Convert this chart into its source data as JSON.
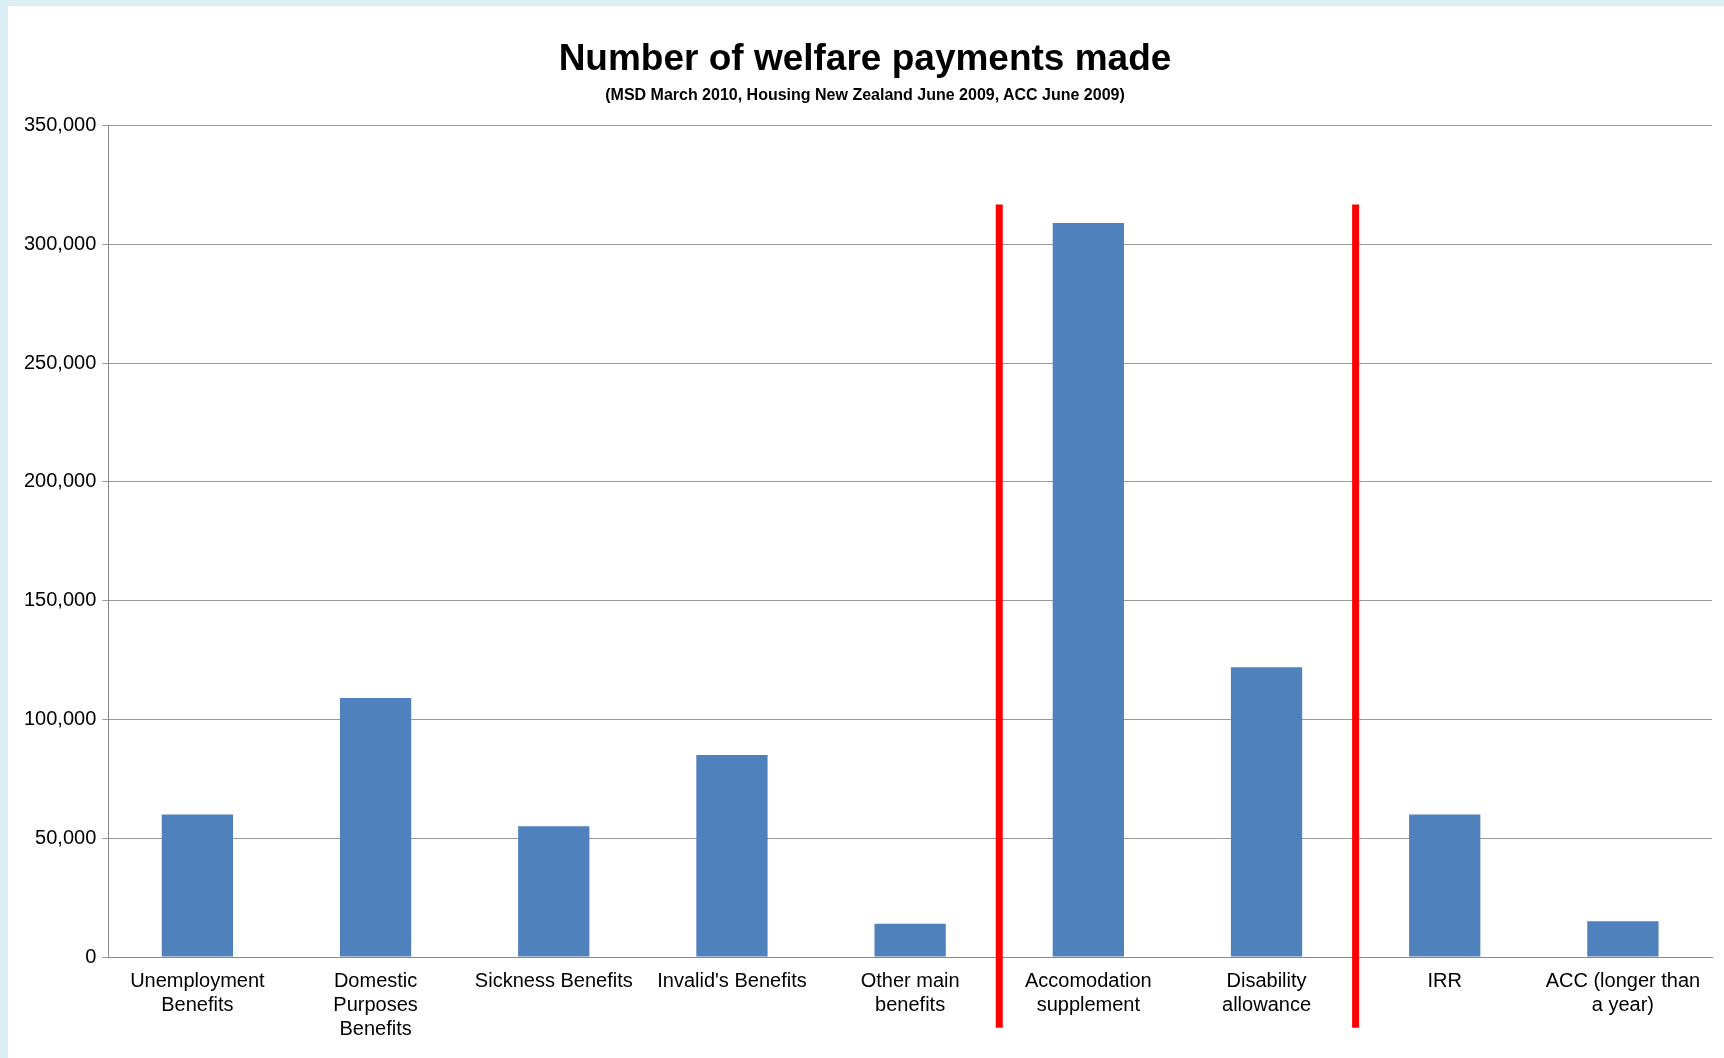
{
  "chart_data": {
    "type": "bar",
    "title": "Number of welfare payments made",
    "subtitle": "(MSD March 2010, Housing New Zealand June 2009, ACC June 2009)",
    "categories": [
      "Unemployment Benefits",
      "Domestic Purposes Benefits",
      "Sickness Benefits",
      "Invalid's Benefits",
      "Other main benefits",
      "Accomodation supplement",
      "Disability allowance",
      "IRR",
      "ACC (longer than a year)"
    ],
    "values": [
      60000,
      109000,
      55000,
      85000,
      14000,
      309000,
      122000,
      60000,
      15000
    ],
    "color": "#4f81bd",
    "ylim": [
      0,
      350000
    ],
    "yticks": [
      0,
      {
        "value": 50000,
        "label": "50,000"
      },
      {
        "value": 100000,
        "label": "100,000"
      },
      {
        "value": 150000,
        "label": "150,000"
      },
      {
        "value": 200000,
        "label": "200,000"
      },
      {
        "value": 250000,
        "label": "250,000"
      },
      {
        "value": 300000,
        "label": "300,000"
      },
      {
        "value": 350000,
        "label": "350,000"
      }
    ],
    "grid": "y",
    "legend": false
  }
}
